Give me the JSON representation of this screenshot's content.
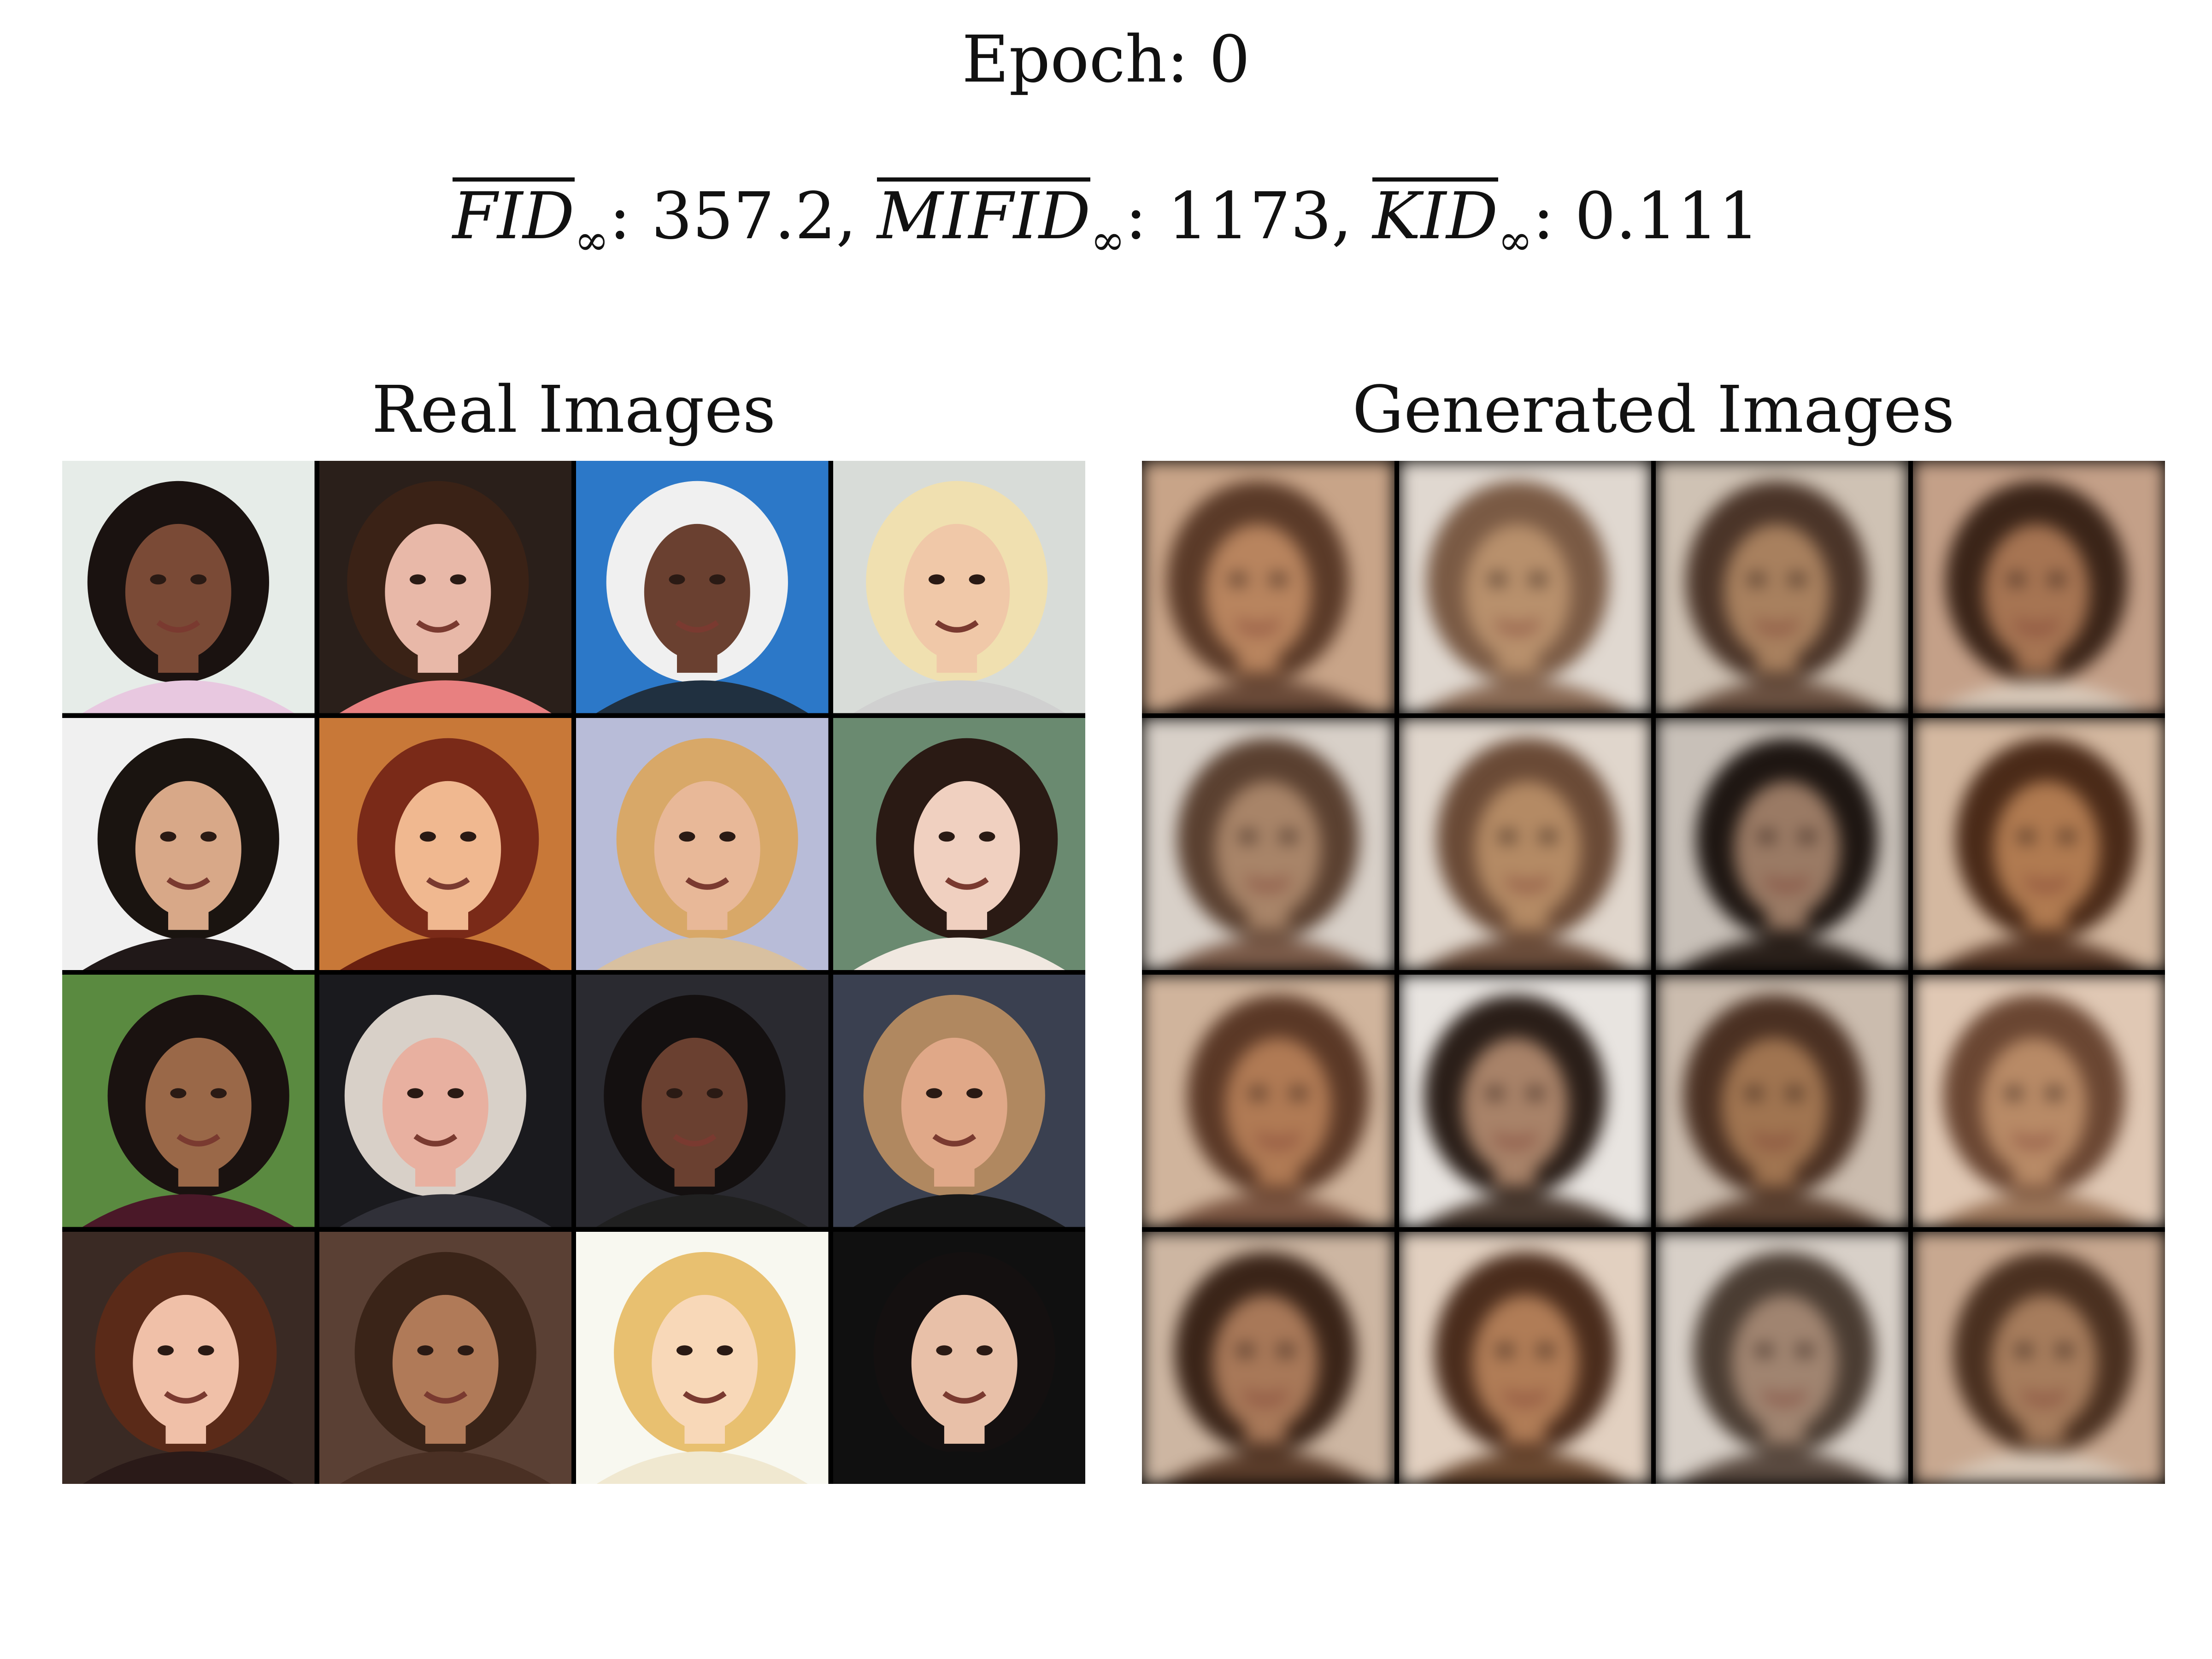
{
  "figure": {
    "epoch_label": "Epoch:",
    "epoch_value": "0"
  },
  "metrics": [
    {
      "name": "FID",
      "subscript": "∞",
      "value": "357.2"
    },
    {
      "name": "MIFID",
      "subscript": "∞",
      "value": "1173"
    },
    {
      "name": "KID",
      "subscript": "∞",
      "value": "0.111"
    }
  ],
  "panels": {
    "real": {
      "title": "Real Images",
      "tiles": [
        {
          "bg": "#e6ece8",
          "hair": "#1a1210",
          "skin": "#7a4a36",
          "clothes": "#e8c8e0"
        },
        {
          "bg": "#2a1f1a",
          "hair": "#3a2216",
          "skin": "#e8b8a8",
          "clothes": "#e88080"
        },
        {
          "bg": "#2c78c8",
          "hair": "#f0f0f0",
          "skin": "#6a4030",
          "clothes": "#203040"
        },
        {
          "bg": "#d8dcd8",
          "hair": "#f0e0b0",
          "skin": "#f0c8a8",
          "clothes": "#d0d0d0"
        },
        {
          "bg": "#f0f0f0",
          "hair": "#1a1410",
          "skin": "#d8a888",
          "clothes": "#201818"
        },
        {
          "bg": "#c87838",
          "hair": "#7a2a18",
          "skin": "#f0b890",
          "clothes": "#6a2010"
        },
        {
          "bg": "#b8bcd8",
          "hair": "#d8a868",
          "skin": "#e8b898",
          "clothes": "#d8c0a0"
        },
        {
          "bg": "#6a8a70",
          "hair": "#2a1a14",
          "skin": "#f0d0c0",
          "clothes": "#f0e8e0"
        },
        {
          "bg": "#5a8a40",
          "hair": "#1a1210",
          "skin": "#9a6848",
          "clothes": "#4a1828"
        },
        {
          "bg": "#1a1a1e",
          "hair": "#d8d0c8",
          "skin": "#e8b0a0",
          "clothes": "#303038"
        },
        {
          "bg": "#2a2a30",
          "hair": "#141010",
          "skin": "#6a4030",
          "clothes": "#202020"
        },
        {
          "bg": "#3a4050",
          "hair": "#b08860",
          "skin": "#e0a888",
          "clothes": "#181818"
        },
        {
          "bg": "#3a2a24",
          "hair": "#5a2a18",
          "skin": "#f0c0a8",
          "clothes": "#2a1a18"
        },
        {
          "bg": "#5a4034",
          "hair": "#3a2418",
          "skin": "#b07a58",
          "clothes": "#4a3024"
        },
        {
          "bg": "#f8f8f0",
          "hair": "#e8c070",
          "skin": "#f8d8b8",
          "clothes": "#f0e8d0"
        },
        {
          "bg": "#101010",
          "hair": "#141010",
          "skin": "#e8c0a8",
          "clothes": "#101010"
        }
      ]
    },
    "generated": {
      "title": "Generated Images",
      "tiles": [
        {
          "bg": "#c8a488",
          "hair": "#5a3a28",
          "skin": "#b8845e",
          "clothes": "#6a4a38"
        },
        {
          "bg": "#e0d8d0",
          "hair": "#7a5a44",
          "skin": "#b8906c",
          "clothes": "#8a6a54"
        },
        {
          "bg": "#cfc2b4",
          "hair": "#4a3428",
          "skin": "#a8805e",
          "clothes": "#6a5040"
        },
        {
          "bg": "#c4a088",
          "hair": "#3a2418",
          "skin": "#a67452",
          "clothes": "#d8c8b8"
        },
        {
          "bg": "#d8d0c8",
          "hair": "#5a4030",
          "skin": "#a88468",
          "clothes": "#7a5a48"
        },
        {
          "bg": "#e0d6cc",
          "hair": "#6a4a36",
          "skin": "#b48a64",
          "clothes": "#6a4c3a"
        },
        {
          "bg": "#c8c0b8",
          "hair": "#1e1612",
          "skin": "#9a7a64",
          "clothes": "#2a201a"
        },
        {
          "bg": "#d4b8a0",
          "hair": "#4a2a18",
          "skin": "#b07a50",
          "clothes": "#5a3a28"
        },
        {
          "bg": "#d0b49c",
          "hair": "#5a3826",
          "skin": "#b07a54",
          "clothes": "#7a5440"
        },
        {
          "bg": "#e8e4e0",
          "hair": "#2a1e18",
          "skin": "#a88268",
          "clothes": "#4a3a30"
        },
        {
          "bg": "#cbbcae",
          "hair": "#4a3022",
          "skin": "#a07450",
          "clothes": "#5a4030"
        },
        {
          "bg": "#e0c8b4",
          "hair": "#6a4632",
          "skin": "#b88a66",
          "clothes": "#9a7458"
        },
        {
          "bg": "#cdb6a2",
          "hair": "#3a2418",
          "skin": "#a87858",
          "clothes": "#5a3c2a"
        },
        {
          "bg": "#e2d0c0",
          "hair": "#4a2c1c",
          "skin": "#b07c56",
          "clothes": "#6a4830"
        },
        {
          "bg": "#d8d0c8",
          "hair": "#4a3c32",
          "skin": "#a08470",
          "clothes": "#5a4a40"
        },
        {
          "bg": "#c8a890",
          "hair": "#4a3020",
          "skin": "#a67c5c",
          "clothes": "#d8c8b8"
        }
      ]
    }
  }
}
